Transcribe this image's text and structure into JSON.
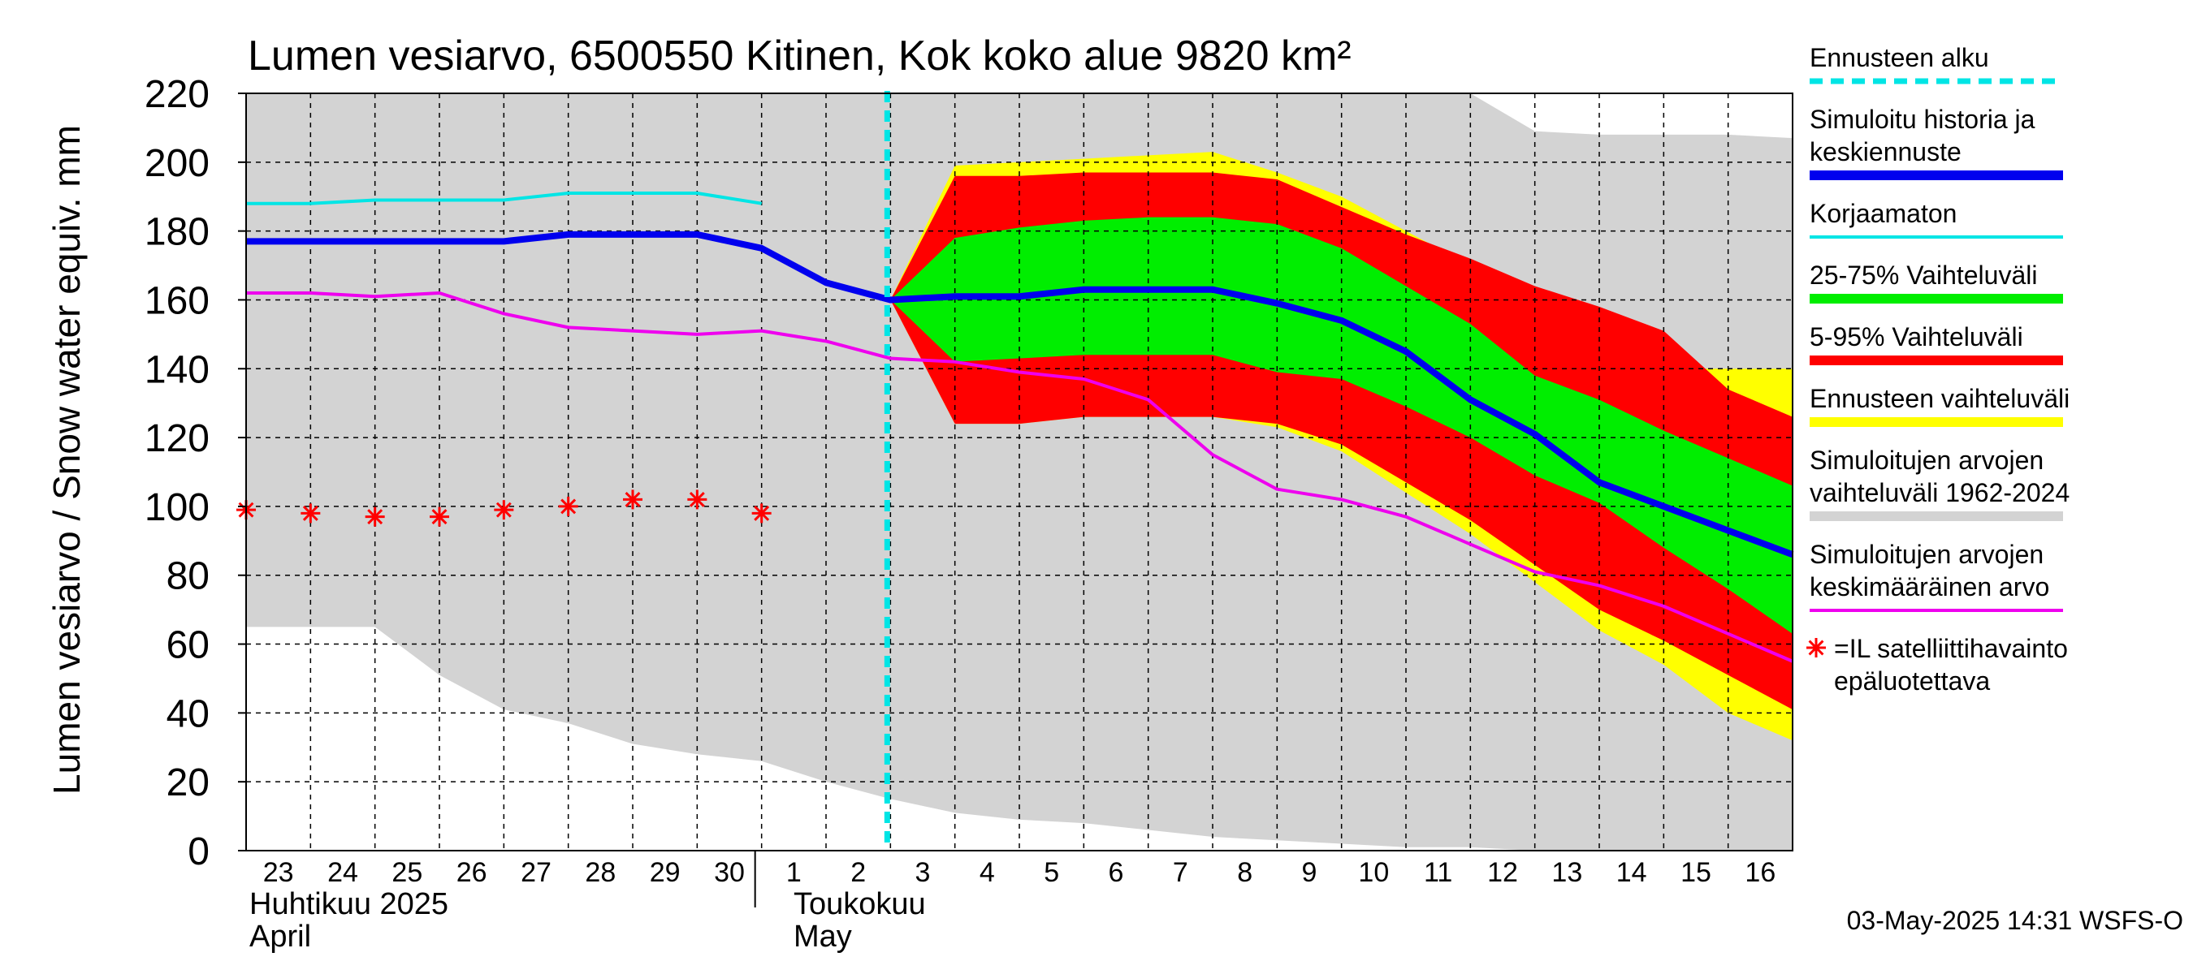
{
  "chart_data": {
    "type": "line",
    "title": "Lumen vesiarvo, 6500550 Kitinen, Kok koko alue 9820 km²",
    "ylabel": "Lumen vesiarvo / Snow water equiv.    mm",
    "ylim": [
      0,
      220
    ],
    "yticks": [
      "0",
      "20",
      "40",
      "60",
      "80",
      "100",
      "120",
      "140",
      "160",
      "180",
      "200",
      "220"
    ],
    "x_day_labels": [
      "23",
      "24",
      "25",
      "26",
      "27",
      "28",
      "29",
      "30",
      "1",
      "2",
      "3",
      "4",
      "5",
      "6",
      "7",
      "8",
      "9",
      "10",
      "11",
      "12",
      "13",
      "14",
      "15",
      "16"
    ],
    "month_labels": {
      "april_fi": "Huhtikuu  2025",
      "april_en": "April",
      "may_fi": "Toukokuu",
      "may_en": "May"
    },
    "forecast_start_day_index": 10,
    "historical_range_band": {
      "x": [
        0,
        1,
        2,
        3,
        4,
        5,
        6,
        7,
        8,
        9,
        10,
        11,
        12,
        13,
        14,
        15,
        16,
        17,
        18,
        19,
        20,
        21,
        22,
        23,
        24
      ],
      "upper": [
        220,
        220,
        220,
        220,
        220,
        220,
        220,
        220,
        220,
        220,
        220,
        220,
        220,
        220,
        220,
        220,
        220,
        220,
        220,
        220,
        209,
        208,
        208,
        208,
        207
      ],
      "lower": [
        65,
        65,
        65,
        51,
        41,
        37,
        31,
        28,
        26,
        20,
        15,
        11,
        9,
        8,
        6,
        4,
        3,
        2,
        1,
        1,
        0,
        0,
        0,
        0,
        0
      ]
    },
    "forecast_range_band": {
      "x": [
        10,
        11,
        12,
        13,
        14,
        15,
        16,
        17,
        18,
        19,
        20,
        21,
        22,
        23,
        24
      ],
      "upper": [
        160,
        199,
        200,
        201,
        202,
        203,
        197,
        190,
        180,
        170,
        160,
        152,
        140,
        140,
        140
      ],
      "lower": [
        160,
        124,
        124,
        126,
        126,
        126,
        123,
        116,
        104,
        92,
        78,
        64,
        54,
        40,
        32
      ]
    },
    "p5_95_band": {
      "x": [
        10,
        11,
        12,
        13,
        14,
        15,
        16,
        17,
        18,
        19,
        20,
        21,
        22,
        23,
        24
      ],
      "upper": [
        160,
        196,
        196,
        197,
        197,
        197,
        195,
        187,
        179,
        172,
        164,
        158,
        151,
        134,
        126
      ],
      "lower": [
        160,
        124,
        124,
        126,
        126,
        126,
        124,
        118,
        107,
        96,
        83,
        70,
        61,
        51,
        41
      ]
    },
    "p25_75_band": {
      "x": [
        10,
        11,
        12,
        13,
        14,
        15,
        16,
        17,
        18,
        19,
        20,
        21,
        22,
        23,
        24
      ],
      "upper": [
        160,
        178,
        181,
        183,
        184,
        184,
        182,
        175,
        164,
        153,
        138,
        131,
        122,
        114,
        106
      ],
      "lower": [
        160,
        142,
        143,
        144,
        144,
        144,
        139,
        137,
        129,
        120,
        109,
        101,
        88,
        76,
        63
      ]
    },
    "series": [
      {
        "name": "Simuloitu historia ja keskiennuste",
        "color": "#0000ee",
        "x": [
          0,
          1,
          2,
          3,
          4,
          5,
          6,
          7,
          8,
          9,
          10,
          11,
          12,
          13,
          14,
          15,
          16,
          17,
          18,
          19,
          20,
          21,
          22,
          23,
          24
        ],
        "values": [
          177,
          177,
          177,
          177,
          177,
          179,
          179,
          179,
          175,
          165,
          160,
          161,
          161,
          163,
          163,
          163,
          159,
          154,
          145,
          131,
          121,
          107,
          100,
          93,
          86
        ]
      },
      {
        "name": "Korjaamaton",
        "color": "#00e5e5",
        "x": [
          0,
          1,
          2,
          3,
          4,
          5,
          6,
          7,
          8
        ],
        "values": [
          188,
          188,
          189,
          189,
          189,
          191,
          191,
          191,
          188
        ]
      },
      {
        "name": "Simuloitujen arvojen keskimääräinen arvo",
        "color": "#ee00ee",
        "x": [
          0,
          1,
          2,
          3,
          4,
          5,
          6,
          7,
          8,
          9,
          10,
          11,
          12,
          13,
          14,
          15,
          16,
          17,
          18,
          19,
          20,
          21,
          22,
          23,
          24
        ],
        "values": [
          162,
          162,
          161,
          162,
          156,
          152,
          151,
          150,
          151,
          148,
          143,
          142,
          139,
          137,
          131,
          115,
          105,
          102,
          97,
          89,
          81,
          77,
          71,
          63,
          55
        ]
      }
    ],
    "satellite_observations": {
      "name": "=IL satelliittihavainto epäluotettava",
      "color": "#ff0000",
      "x": [
        0,
        1,
        2,
        3,
        4,
        5,
        6,
        7,
        8
      ],
      "values": [
        99,
        98,
        97,
        97,
        99,
        100,
        102,
        102,
        98
      ]
    },
    "legend": [
      {
        "label": [
          "Ennusteen alku"
        ],
        "color": "#00e5e5",
        "style": "dashed"
      },
      {
        "label": [
          "Simuloitu historia ja",
          "keskiennuste"
        ],
        "color": "#0000ee",
        "style": "thick"
      },
      {
        "label": [
          "Korjaamaton"
        ],
        "color": "#00e5e5",
        "style": "line"
      },
      {
        "label": [
          "25-75% Vaihteluväli"
        ],
        "color": "#00ee00",
        "style": "thick"
      },
      {
        "label": [
          "5-95% Vaihteluväli"
        ],
        "color": "#ff0000",
        "style": "thick"
      },
      {
        "label": [
          "Ennusteen vaihteluväli"
        ],
        "color": "#ffff00",
        "style": "thick"
      },
      {
        "label": [
          "Simuloitujen arvojen",
          "vaihteluväli 1962-2024"
        ],
        "color": "#d3d3d3",
        "style": "thick"
      },
      {
        "label": [
          "Simuloitujen arvojen",
          "keskimääräinen arvo"
        ],
        "color": "#ee00ee",
        "style": "line"
      },
      {
        "label": [
          "=IL satelliittihavainto",
          "epäluotettava"
        ],
        "color": "#ff0000",
        "style": "marker"
      }
    ],
    "footer": "03-May-2025 14:31 WSFS-O"
  }
}
